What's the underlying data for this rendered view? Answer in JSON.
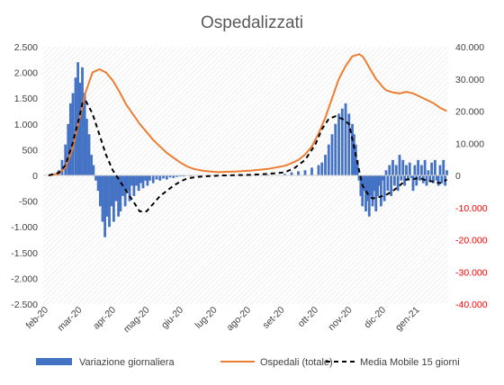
{
  "chart_data": {
    "type": "bar+line",
    "title": "Ospedalizzati",
    "x_labels": [
      "feb-20",
      "mar-20",
      "apr-20",
      "mag-20",
      "giu-20",
      "lug-20",
      "ago-20",
      "set-20",
      "ott-20",
      "nov-20",
      "dic-20",
      "gen-21"
    ],
    "y_left": {
      "range": [
        -2500,
        2500
      ],
      "ticks": [
        "-2.500",
        "-2.000",
        "-1.500",
        "-1.000",
        "-500",
        "0",
        "500",
        "1.000",
        "1.500",
        "2.000",
        "2.500"
      ]
    },
    "y_right": {
      "range": [
        -40000,
        40000
      ],
      "ticks": [
        "-40.000",
        "-30.000",
        "-20.000",
        "-10.000",
        "0",
        "10.000",
        "20.000",
        "30.000",
        "40.000"
      ],
      "negative_color": "#ff0000"
    },
    "grid": "diagonal-hatch background",
    "legend_position": "bottom",
    "legend": [
      {
        "label": "Variazione giornaliera",
        "color": "#4472c4"
      },
      {
        "label": "Ospedali (totale)",
        "color": "#ed7d31"
      },
      {
        "label": "Media Mobile 15 giorni",
        "color": "#000000"
      }
    ],
    "series_daily_change": {
      "name": "Variazione giornaliera",
      "axis": "left",
      "x_month_index": [
        0.0,
        0.15,
        0.3,
        0.4,
        0.5,
        0.58,
        0.65,
        0.72,
        0.8,
        0.87,
        0.93,
        1.0,
        1.07,
        1.13,
        1.2,
        1.27,
        1.33,
        1.4,
        1.47,
        1.53,
        1.6,
        1.67,
        1.73,
        1.8,
        1.87,
        1.93,
        2.0,
        2.07,
        2.13,
        2.2,
        2.27,
        2.33,
        2.4,
        2.47,
        2.53,
        2.6,
        2.67,
        2.73,
        2.8,
        2.87,
        2.93,
        3.0,
        3.1,
        3.2,
        3.3,
        3.4,
        3.5,
        3.6,
        3.7,
        3.8,
        3.9,
        4.0,
        4.2,
        4.4,
        4.6,
        4.8,
        5.0,
        5.5,
        6.0,
        6.5,
        7.0,
        7.2,
        7.4,
        7.6,
        7.8,
        8.0,
        8.1,
        8.2,
        8.3,
        8.4,
        8.5,
        8.6,
        8.7,
        8.8,
        8.9,
        9.0,
        9.05,
        9.1,
        9.15,
        9.2,
        9.25,
        9.3,
        9.35,
        9.4,
        9.45,
        9.5,
        9.55,
        9.6,
        9.65,
        9.7,
        9.75,
        9.8,
        9.85,
        9.9,
        9.95,
        10.0,
        10.05,
        10.1,
        10.15,
        10.2,
        10.25,
        10.3,
        10.35,
        10.4,
        10.45,
        10.5,
        10.55,
        10.6,
        10.65,
        10.7,
        10.75,
        10.8,
        10.85,
        10.9,
        10.95,
        11.0,
        11.05,
        11.1,
        11.15,
        11.2,
        11.25,
        11.3,
        11.35,
        11.4,
        11.45,
        11.5,
        11.55,
        11.6,
        11.65,
        11.7,
        11.75,
        11.8
      ],
      "values": [
        10,
        40,
        100,
        300,
        600,
        1000,
        1400,
        1600,
        1900,
        2200,
        1800,
        2100,
        1600,
        1100,
        800,
        400,
        200,
        -100,
        -300,
        -600,
        -900,
        -1200,
        -800,
        -1000,
        -600,
        -900,
        -500,
        -800,
        -700,
        -400,
        -600,
        -300,
        -500,
        -200,
        -400,
        -200,
        -300,
        -150,
        -250,
        -100,
        -200,
        -100,
        -150,
        -80,
        -100,
        -60,
        -80,
        -40,
        -50,
        -30,
        -20,
        -20,
        -15,
        -10,
        -5,
        0,
        5,
        10,
        10,
        15,
        30,
        60,
        80,
        100,
        150,
        200,
        250,
        400,
        600,
        800,
        1000,
        1200,
        1300,
        1400,
        1200,
        1000,
        800,
        600,
        300,
        -100,
        -400,
        -600,
        -300,
        -700,
        -500,
        -800,
        -400,
        -600,
        -300,
        -700,
        -400,
        -200,
        -600,
        -100,
        -500,
        100,
        -300,
        200,
        -400,
        300,
        -200,
        200,
        -300,
        400,
        -100,
        300,
        -200,
        200,
        -100,
        250,
        -50,
        -300,
        200,
        -200,
        300,
        -100,
        200,
        -150,
        300,
        -200,
        100,
        -100,
        250,
        -150,
        300,
        -100,
        -200,
        200,
        -150,
        300,
        -200,
        100
      ]
    },
    "series_total": {
      "name": "Ospedali (totale)",
      "axis": "right",
      "x_month_index": [
        0.0,
        0.3,
        0.5,
        0.7,
        0.9,
        1.1,
        1.3,
        1.5,
        1.7,
        1.9,
        2.1,
        2.3,
        2.5,
        2.7,
        2.9,
        3.1,
        3.3,
        3.5,
        3.7,
        3.9,
        4.1,
        4.3,
        4.6,
        5.0,
        5.5,
        6.0,
        6.5,
        7.0,
        7.2,
        7.4,
        7.6,
        7.8,
        8.0,
        8.2,
        8.4,
        8.6,
        8.8,
        9.0,
        9.2,
        9.3,
        9.4,
        9.5,
        9.6,
        9.7,
        9.8,
        9.9,
        10.0,
        10.2,
        10.4,
        10.6,
        10.8,
        11.0,
        11.2,
        11.4,
        11.6,
        11.8
      ],
      "values": [
        0,
        500,
        2500,
        8000,
        17000,
        26000,
        32000,
        33000,
        32000,
        29500,
        26000,
        22000,
        19000,
        16000,
        13500,
        11000,
        9000,
        7000,
        5500,
        4000,
        2800,
        2000,
        1400,
        1000,
        1200,
        1500,
        2000,
        3000,
        3800,
        4800,
        6500,
        9000,
        13000,
        18000,
        24000,
        30000,
        34000,
        37000,
        37700,
        37000,
        35500,
        33500,
        31800,
        30000,
        28800,
        27500,
        26500,
        25800,
        25500,
        26000,
        25500,
        24500,
        23500,
        22500,
        21000,
        20000
      ]
    },
    "series_moving_avg": {
      "name": "Media Mobile 15 giorni",
      "axis": "left",
      "x_month_index": [
        0.0,
        0.3,
        0.5,
        0.7,
        0.9,
        1.0,
        1.1,
        1.3,
        1.5,
        1.7,
        1.9,
        2.1,
        2.3,
        2.5,
        2.7,
        2.9,
        3.1,
        3.3,
        3.5,
        3.7,
        3.9,
        4.1,
        4.4,
        4.8,
        5.2,
        5.6,
        6.0,
        6.5,
        7.0,
        7.3,
        7.6,
        7.9,
        8.1,
        8.3,
        8.5,
        8.7,
        8.9,
        9.0,
        9.1,
        9.2,
        9.3,
        9.4,
        9.5,
        9.6,
        9.8,
        10.0,
        10.2,
        10.4,
        10.6,
        10.8,
        11.0,
        11.2,
        11.4,
        11.6,
        11.8
      ],
      "values": [
        0,
        50,
        200,
        600,
        1100,
        1400,
        1450,
        1200,
        800,
        400,
        100,
        -100,
        -300,
        -500,
        -700,
        -700,
        -550,
        -400,
        -300,
        -200,
        -120,
        -60,
        -30,
        -10,
        0,
        5,
        10,
        30,
        60,
        150,
        300,
        600,
        900,
        1100,
        1150,
        1100,
        1000,
        700,
        400,
        100,
        -200,
        -300,
        -400,
        -450,
        -420,
        -380,
        -300,
        -200,
        -80,
        -70,
        -50,
        -100,
        -120,
        -150,
        -80
      ]
    }
  }
}
